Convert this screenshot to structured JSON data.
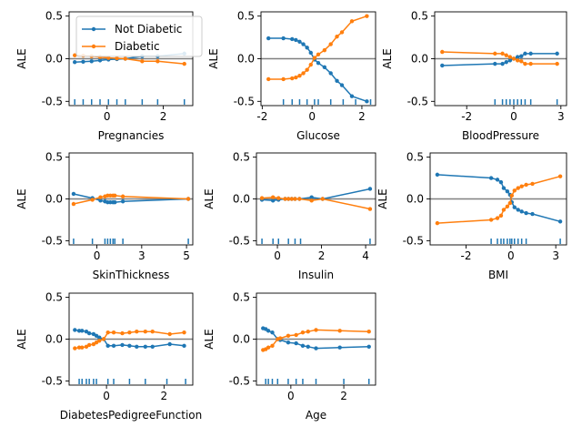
{
  "legend": {
    "entries": [
      "Not Diabetic",
      "Diabetic"
    ],
    "placement": "upper-left of first panel"
  },
  "colors": {
    "not_diabetic": "#1f77b4",
    "diabetic": "#ff7f0e",
    "zero_line": "#808080",
    "axes": "#000000"
  },
  "chart_data": [
    {
      "type": "line",
      "xlabel": "Pregnancies",
      "ylabel": "ALE",
      "xlim": [
        -1.35,
        3.05
      ],
      "ylim": [
        -0.55,
        0.55
      ],
      "xticks": [
        0,
        2
      ],
      "yticks": [
        -0.5,
        0.0,
        0.5
      ],
      "x": [
        -1.15,
        -0.85,
        -0.55,
        -0.25,
        0.05,
        0.35,
        0.65,
        1.25,
        1.8,
        2.75
      ],
      "series": [
        {
          "name": "Not Diabetic",
          "values": [
            -0.04,
            -0.035,
            -0.03,
            -0.02,
            -0.01,
            -0.005,
            0.0,
            0.03,
            0.03,
            0.06
          ]
        },
        {
          "name": "Diabetic",
          "values": [
            0.04,
            0.035,
            0.03,
            0.02,
            0.01,
            0.005,
            0.0,
            -0.03,
            -0.03,
            -0.06
          ]
        }
      ],
      "rug": [
        -1.15,
        -0.85,
        -0.55,
        -0.25,
        0.05,
        0.35,
        0.65,
        1.25,
        1.8,
        2.75
      ]
    },
    {
      "type": "line",
      "xlabel": "Glucose",
      "ylabel": "ALE",
      "xlim": [
        -2.05,
        2.55
      ],
      "ylim": [
        -0.55,
        0.55
      ],
      "xticks": [
        -2,
        0,
        2
      ],
      "yticks": [
        -0.5,
        0.0,
        0.5
      ],
      "x": [
        -1.75,
        -1.15,
        -0.8,
        -0.65,
        -0.5,
        -0.35,
        -0.2,
        -0.05,
        0.1,
        0.25,
        0.5,
        0.75,
        1.0,
        1.2,
        1.6,
        2.2
      ],
      "series": [
        {
          "name": "Not Diabetic",
          "values": [
            0.24,
            0.24,
            0.23,
            0.22,
            0.2,
            0.17,
            0.13,
            0.07,
            -0.01,
            -0.05,
            -0.1,
            -0.17,
            -0.26,
            -0.31,
            -0.44,
            -0.5
          ]
        },
        {
          "name": "Diabetic",
          "values": [
            -0.24,
            -0.24,
            -0.23,
            -0.22,
            -0.2,
            -0.17,
            -0.13,
            -0.07,
            0.01,
            0.05,
            0.1,
            0.17,
            0.26,
            0.31,
            0.44,
            0.5
          ]
        }
      ],
      "rug": [
        -1.15,
        -0.8,
        -0.5,
        -0.2,
        0.1,
        0.25,
        0.75,
        1.25,
        1.75,
        2.35
      ]
    },
    {
      "type": "line",
      "xlabel": "BloodPressure",
      "ylabel": "ALE",
      "xlim": [
        -4.2,
        2.8
      ],
      "ylim": [
        -0.55,
        0.55
      ],
      "xticks": [
        -2.5,
        0.0,
        2.5
      ],
      "yticks": [
        -0.5,
        0.0,
        0.5
      ],
      "x": [
        -3.8,
        -1.0,
        -0.6,
        -0.4,
        -0.2,
        0.0,
        0.2,
        0.4,
        0.6,
        0.9,
        2.3
      ],
      "series": [
        {
          "name": "Not Diabetic",
          "values": [
            -0.08,
            -0.06,
            -0.06,
            -0.04,
            -0.02,
            0.0,
            0.02,
            0.03,
            0.06,
            0.06,
            0.06
          ]
        },
        {
          "name": "Diabetic",
          "values": [
            0.08,
            0.06,
            0.06,
            0.04,
            0.02,
            0.0,
            -0.02,
            -0.03,
            -0.06,
            -0.06,
            -0.06
          ]
        }
      ],
      "rug": [
        -1.0,
        -0.6,
        -0.4,
        -0.2,
        0.0,
        0.2,
        0.4,
        0.6,
        0.9,
        2.3
      ]
    },
    {
      "type": "line",
      "xlabel": "SkinThickness",
      "ylabel": "ALE",
      "xlim": [
        -1.55,
        5.35
      ],
      "ylim": [
        -0.55,
        0.55
      ],
      "xticks": [
        0.0,
        2.5,
        5.0
      ],
      "yticks": [
        -0.5,
        0.0,
        0.5
      ],
      "x": [
        -1.3,
        -0.25,
        0.2,
        0.45,
        0.6,
        0.75,
        0.9,
        1.0,
        1.45,
        5.1
      ],
      "series": [
        {
          "name": "Not Diabetic",
          "values": [
            0.06,
            0.01,
            -0.02,
            -0.03,
            -0.04,
            -0.04,
            -0.04,
            -0.04,
            -0.03,
            0.0
          ]
        },
        {
          "name": "Diabetic",
          "values": [
            -0.06,
            -0.01,
            0.02,
            0.03,
            0.04,
            0.04,
            0.04,
            0.04,
            0.03,
            0.0
          ]
        }
      ],
      "rug": [
        -1.3,
        -0.25,
        0.45,
        0.6,
        0.75,
        0.9,
        1.0,
        1.45,
        5.1
      ]
    },
    {
      "type": "line",
      "xlabel": "Insulin",
      "ylabel": "ALE",
      "xlim": [
        -0.95,
        4.45
      ],
      "ylim": [
        -0.55,
        0.55
      ],
      "xticks": [
        0,
        2,
        4
      ],
      "yticks": [
        -0.5,
        0.0,
        0.5
      ],
      "x": [
        -0.7,
        -0.2,
        0.05,
        0.35,
        0.5,
        0.65,
        0.8,
        1.0,
        1.55,
        2.05,
        4.2
      ],
      "series": [
        {
          "name": "Not Diabetic",
          "values": [
            -0.01,
            -0.02,
            -0.01,
            0.0,
            0.0,
            0.0,
            0.0,
            0.0,
            0.02,
            0.0,
            0.12
          ]
        },
        {
          "name": "Diabetic",
          "values": [
            0.01,
            0.02,
            0.01,
            0.0,
            0.0,
            0.0,
            0.0,
            0.0,
            -0.02,
            0.0,
            -0.12
          ]
        }
      ],
      "rug": [
        -0.7,
        -0.2,
        0.05,
        0.5,
        0.8,
        1.05,
        4.2
      ]
    },
    {
      "type": "line",
      "xlabel": "BMI",
      "ylabel": "ALE",
      "xlim": [
        -4.5,
        3.1
      ],
      "ylim": [
        -0.55,
        0.55
      ],
      "xticks": [
        -2.5,
        0.0,
        2.5
      ],
      "yticks": [
        -0.5,
        0.0,
        0.5
      ],
      "x": [
        -4.1,
        -1.1,
        -0.75,
        -0.55,
        -0.4,
        -0.2,
        -0.05,
        0.05,
        0.2,
        0.4,
        0.6,
        0.85,
        1.2,
        2.75
      ],
      "series": [
        {
          "name": "Not Diabetic",
          "values": [
            0.29,
            0.25,
            0.23,
            0.2,
            0.13,
            0.09,
            0.05,
            -0.04,
            -0.1,
            -0.13,
            -0.15,
            -0.17,
            -0.18,
            -0.27
          ]
        },
        {
          "name": "Diabetic",
          "values": [
            -0.29,
            -0.25,
            -0.23,
            -0.2,
            -0.13,
            -0.09,
            -0.05,
            0.04,
            0.1,
            0.13,
            0.15,
            0.17,
            0.18,
            0.27
          ]
        }
      ],
      "rug": [
        -1.1,
        -0.75,
        -0.55,
        -0.4,
        -0.2,
        -0.05,
        0.05,
        0.2,
        0.4,
        0.6,
        0.85,
        2.75
      ]
    },
    {
      "type": "line",
      "xlabel": "DiabetesPedigreeFunction",
      "ylabel": "ALE",
      "xlim": [
        -1.3,
        3.0
      ],
      "ylim": [
        -0.55,
        0.55
      ],
      "xticks": [
        0,
        2
      ],
      "yticks": [
        -0.5,
        0.0,
        0.5
      ],
      "x": [
        -1.1,
        -0.95,
        -0.85,
        -0.7,
        -0.6,
        -0.45,
        -0.35,
        -0.25,
        -0.1,
        0.05,
        0.25,
        0.55,
        0.8,
        1.05,
        1.35,
        1.6,
        2.2,
        2.7
      ],
      "series": [
        {
          "name": "Not Diabetic",
          "values": [
            0.11,
            0.1,
            0.1,
            0.09,
            0.07,
            0.06,
            0.04,
            0.02,
            0.0,
            -0.08,
            -0.08,
            -0.07,
            -0.08,
            -0.09,
            -0.09,
            -0.09,
            -0.06,
            -0.08
          ]
        },
        {
          "name": "Diabetic",
          "values": [
            -0.11,
            -0.1,
            -0.1,
            -0.09,
            -0.07,
            -0.06,
            -0.04,
            -0.02,
            0.0,
            0.08,
            0.08,
            0.07,
            0.08,
            0.09,
            0.09,
            0.09,
            0.06,
            0.08
          ]
        }
      ],
      "rug": [
        -0.95,
        -0.85,
        -0.7,
        -0.6,
        -0.45,
        -0.35,
        0.05,
        0.25,
        0.8,
        1.35,
        2.1,
        2.75
      ]
    },
    {
      "type": "line",
      "xlabel": "Age",
      "ylabel": "ALE",
      "xlim": [
        -1.3,
        3.2
      ],
      "ylim": [
        -0.55,
        0.55
      ],
      "xticks": [
        0,
        2
      ],
      "yticks": [
        -0.5,
        0.0,
        0.5
      ],
      "x": [
        -1.05,
        -0.95,
        -0.85,
        -0.7,
        -0.5,
        -0.4,
        -0.1,
        0.2,
        0.45,
        0.65,
        0.95,
        1.85,
        2.95
      ],
      "series": [
        {
          "name": "Not Diabetic",
          "values": [
            0.13,
            0.12,
            0.1,
            0.08,
            0.0,
            -0.01,
            -0.04,
            -0.05,
            -0.08,
            -0.09,
            -0.11,
            -0.1,
            -0.09
          ]
        },
        {
          "name": "Diabetic",
          "values": [
            -0.13,
            -0.12,
            -0.1,
            -0.08,
            0.0,
            0.01,
            0.04,
            0.05,
            0.08,
            0.09,
            0.11,
            0.1,
            0.09
          ]
        }
      ],
      "rug": [
        -0.95,
        -0.85,
        -0.7,
        -0.5,
        -0.1,
        0.2,
        0.45,
        0.95,
        2.0,
        2.95
      ]
    }
  ]
}
